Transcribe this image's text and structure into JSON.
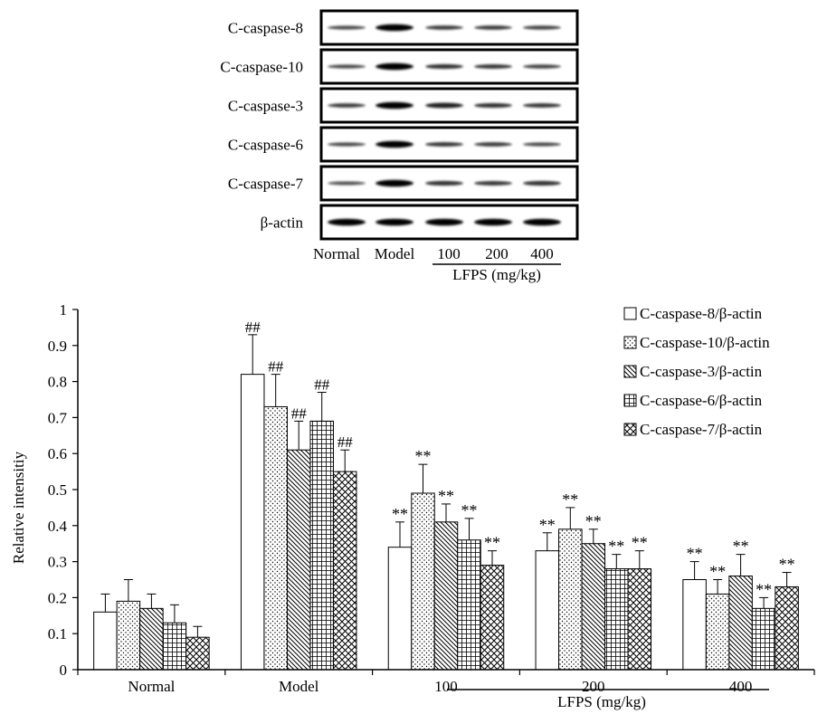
{
  "western_blot": {
    "rows": [
      {
        "label": "C-caspase-8",
        "intensities": [
          0.35,
          1.0,
          0.45,
          0.45,
          0.4
        ]
      },
      {
        "label": "C-caspase-10",
        "intensities": [
          0.35,
          1.0,
          0.55,
          0.5,
          0.4
        ]
      },
      {
        "label": "C-caspase-3",
        "intensities": [
          0.45,
          1.0,
          0.7,
          0.55,
          0.5
        ]
      },
      {
        "label": "C-caspase-6",
        "intensities": [
          0.35,
          1.0,
          0.5,
          0.45,
          0.35
        ]
      },
      {
        "label": "C-caspase-7",
        "intensities": [
          0.3,
          1.0,
          0.55,
          0.5,
          0.55
        ]
      },
      {
        "label": "β-actin",
        "intensities": [
          1.0,
          1.0,
          1.0,
          1.0,
          1.0
        ]
      }
    ],
    "lanes": [
      "Normal",
      "Model",
      "100",
      "200",
      "400"
    ],
    "group_label": "LFPS (mg/kg)"
  },
  "chart_data": {
    "type": "bar",
    "categories": [
      "Normal",
      "Model",
      "100",
      "200",
      "400"
    ],
    "group_label": "LFPS (mg/kg)",
    "ylabel": "Relative intensitiy",
    "xlabel": "",
    "ylim": [
      0,
      1
    ],
    "yticks": [
      "0",
      "0.1",
      "0.2",
      "0.3",
      "0.4",
      "0.5",
      "0.6",
      "0.7",
      "0.8",
      "0.9",
      "1"
    ],
    "grid": false,
    "legend_position": "top-right",
    "series": [
      {
        "name": "C-caspase-8/β-actin",
        "pattern": "blank",
        "values": [
          0.16,
          0.82,
          0.34,
          0.33,
          0.25
        ],
        "errors": [
          0.05,
          0.11,
          0.07,
          0.05,
          0.05
        ],
        "marks": [
          "",
          "##",
          "**",
          "**",
          "**"
        ]
      },
      {
        "name": "C-caspase-10/β-actin",
        "pattern": "dots",
        "values": [
          0.19,
          0.73,
          0.49,
          0.39,
          0.21
        ],
        "errors": [
          0.06,
          0.09,
          0.08,
          0.06,
          0.04
        ],
        "marks": [
          "",
          "##",
          "**",
          "**",
          "**"
        ]
      },
      {
        "name": "C-caspase-3/β-actin",
        "pattern": "diagonal",
        "values": [
          0.17,
          0.61,
          0.41,
          0.35,
          0.26
        ],
        "errors": [
          0.04,
          0.08,
          0.05,
          0.04,
          0.06
        ],
        "marks": [
          "",
          "##",
          "**",
          "**",
          "**"
        ]
      },
      {
        "name": "C-caspase-6/β-actin",
        "pattern": "grid",
        "values": [
          0.13,
          0.69,
          0.36,
          0.28,
          0.17
        ],
        "errors": [
          0.05,
          0.08,
          0.06,
          0.04,
          0.03
        ],
        "marks": [
          "",
          "##",
          "**",
          "**",
          "**"
        ]
      },
      {
        "name": "C-caspase-7/β-actin",
        "pattern": "crosshatch",
        "values": [
          0.09,
          0.55,
          0.29,
          0.28,
          0.23
        ],
        "errors": [
          0.03,
          0.06,
          0.04,
          0.05,
          0.04
        ],
        "marks": [
          "",
          "##",
          "**",
          "**",
          "**"
        ]
      }
    ]
  }
}
